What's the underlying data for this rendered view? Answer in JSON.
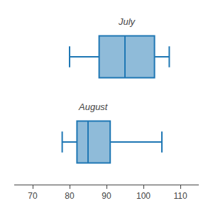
{
  "chart_data": {
    "type": "box",
    "orientation": "horizontal",
    "categories": [
      "July",
      "August"
    ],
    "whisker_low": [
      80,
      78
    ],
    "q1": [
      88,
      82
    ],
    "median": [
      95,
      85
    ],
    "q3": [
      103,
      91
    ],
    "whisker_high": [
      107,
      105
    ],
    "xlim": [
      65,
      115
    ],
    "xticks": [
      70,
      80,
      90,
      100,
      110
    ],
    "grid": false,
    "tick_labels": "x"
  }
}
